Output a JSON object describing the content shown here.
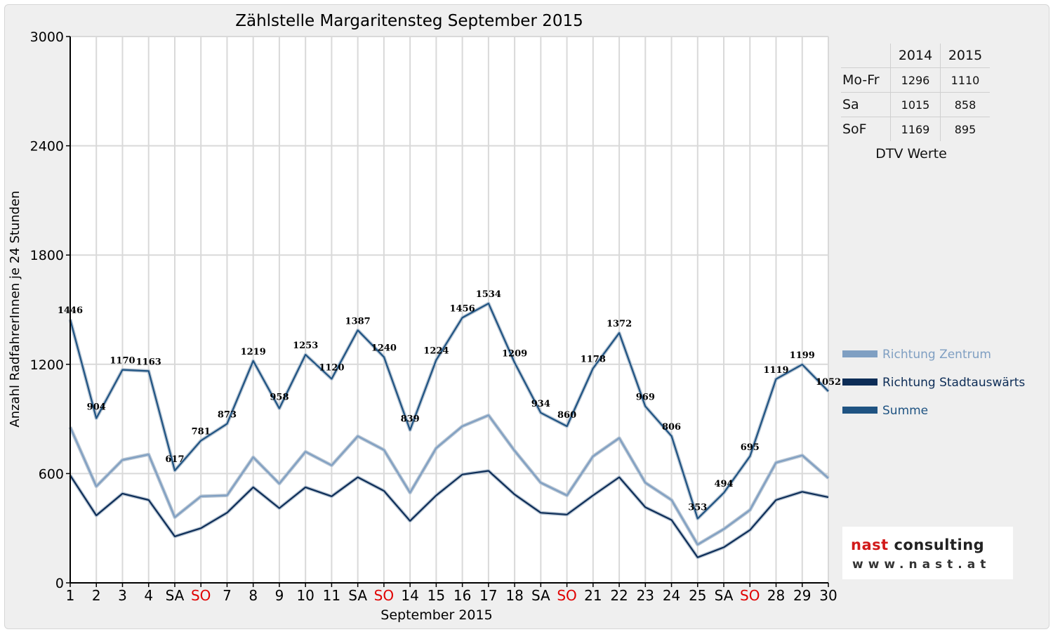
{
  "chart_data": {
    "type": "line",
    "title": "Zählstelle Margaritensteg September 2015",
    "xlabel": "September 2015",
    "ylabel": "Anzahl RadfahrerInnen je 24 Stunden",
    "ylim": [
      0,
      3000
    ],
    "yticks": [
      0,
      600,
      1200,
      1800,
      2400,
      3000
    ],
    "grid": true,
    "legend_position": "right",
    "categories": [
      "1",
      "2",
      "3",
      "4",
      "SA",
      "SO",
      "7",
      "8",
      "9",
      "10",
      "11",
      "SA",
      "SO",
      "14",
      "15",
      "16",
      "17",
      "18",
      "SA",
      "SO",
      "21",
      "22",
      "23",
      "24",
      "25",
      "SA",
      "SO",
      "28",
      "29",
      "30"
    ],
    "weekend_categories": [
      "SO"
    ],
    "series": [
      {
        "name": "Richtung Zentrum",
        "color": "#7f9fc2",
        "values": [
          855,
          530,
          675,
          705,
          360,
          475,
          480,
          690,
          545,
          720,
          645,
          805,
          730,
          495,
          740,
          860,
          920,
          725,
          550,
          480,
          695,
          795,
          550,
          455,
          210,
          295,
          400,
          660,
          700,
          575
        ]
      },
      {
        "name": "Richtung Stadtauswärts",
        "color": "#0d2d57",
        "values": [
          590,
          370,
          490,
          455,
          255,
          300,
          385,
          525,
          410,
          525,
          475,
          580,
          505,
          340,
          480,
          595,
          615,
          485,
          385,
          375,
          480,
          580,
          415,
          345,
          140,
          195,
          290,
          455,
          500,
          470
        ]
      },
      {
        "name": "Summe",
        "color": "#1f5382",
        "values": [
          1446,
          904,
          1170,
          1163,
          617,
          781,
          873,
          1219,
          958,
          1253,
          1120,
          1387,
          1240,
          839,
          1224,
          1456,
          1534,
          1209,
          934,
          860,
          1178,
          1372,
          969,
          806,
          353,
          494,
          695,
          1119,
          1199,
          1052
        ],
        "labels": [
          "1446",
          "904",
          "1170",
          "1163",
          "617",
          "781",
          "873",
          "1219",
          "958",
          "1253",
          "1120",
          "1387",
          "1240",
          "839",
          "1224",
          "1456",
          "1534",
          "1209",
          "934",
          "860",
          "1178",
          "1372",
          "969",
          "806",
          "353",
          "494",
          "695",
          "1119",
          "1199",
          "1052"
        ]
      }
    ],
    "colors": {
      "weekend_label": "#e00000",
      "axis": "#000000",
      "grid": "#d9d9d9"
    }
  },
  "dtv_table": {
    "caption": "DTV Werte",
    "years": [
      "2014",
      "2015"
    ],
    "rows": [
      {
        "label": "Mo-Fr",
        "v2014": "1296",
        "v2015": "1110"
      },
      {
        "label": "Sa",
        "v2014": "1015",
        "v2015": "858"
      },
      {
        "label": "SoF",
        "v2014": "1169",
        "v2015": "895"
      }
    ]
  },
  "logo": {
    "name_accent": "nast",
    "name_rest": " consulting",
    "url": "www.nast.at"
  }
}
